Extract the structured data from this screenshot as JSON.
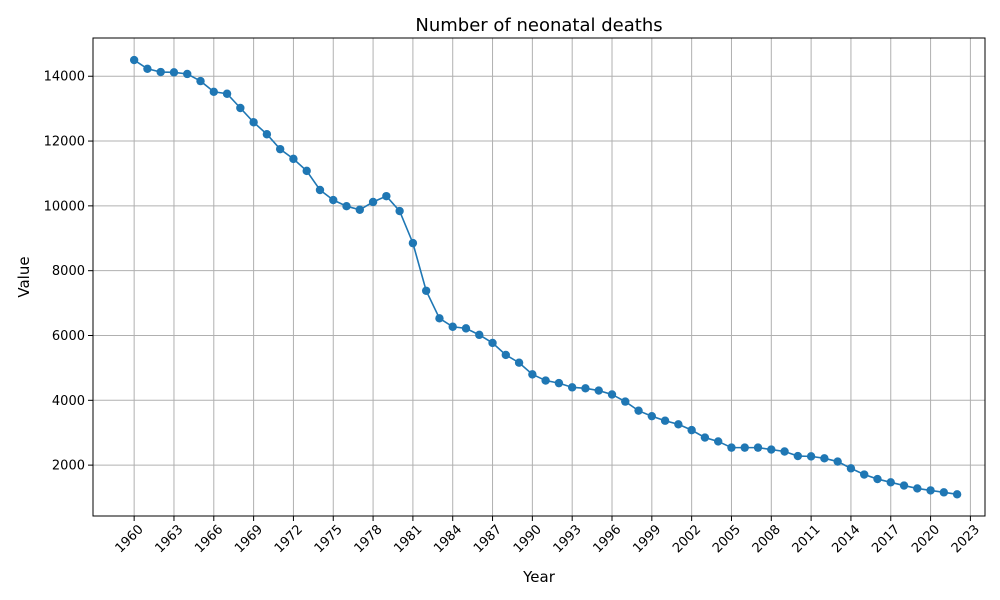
{
  "chart_data": {
    "type": "line",
    "title": "Number of neonatal deaths",
    "xlabel": "Year",
    "ylabel": "Value",
    "xlim": [
      1956.9,
      2024.1
    ],
    "ylim": [
      430,
      15180
    ],
    "x_ticks": [
      1960,
      1963,
      1966,
      1969,
      1972,
      1975,
      1978,
      1981,
      1984,
      1987,
      1990,
      1993,
      1996,
      1999,
      2002,
      2005,
      2008,
      2011,
      2014,
      2017,
      2020,
      2023
    ],
    "y_ticks": [
      2000,
      4000,
      6000,
      8000,
      10000,
      12000,
      14000
    ],
    "grid": true,
    "series_color": "#1f77b4",
    "grid_color": "#b0b0b0",
    "series": [
      {
        "marker": "circle",
        "x": [
          1960,
          1961,
          1962,
          1963,
          1964,
          1965,
          1966,
          1967,
          1968,
          1969,
          1970,
          1971,
          1972,
          1973,
          1974,
          1975,
          1976,
          1977,
          1978,
          1979,
          1980,
          1981,
          1982,
          1983,
          1984,
          1985,
          1986,
          1987,
          1988,
          1989,
          1990,
          1991,
          1992,
          1993,
          1994,
          1995,
          1996,
          1997,
          1998,
          1999,
          2000,
          2001,
          2002,
          2003,
          2004,
          2005,
          2006,
          2007,
          2008,
          2009,
          2010,
          2011,
          2012,
          2013,
          2014,
          2015,
          2016,
          2017,
          2018,
          2019,
          2020,
          2021,
          2022
        ],
        "y": [
          14500,
          14230,
          14130,
          14120,
          14070,
          13850,
          13520,
          13460,
          13020,
          12580,
          12210,
          11750,
          11450,
          11080,
          10490,
          10180,
          9990,
          9880,
          10120,
          10300,
          9840,
          8850,
          7380,
          6530,
          6270,
          6220,
          6020,
          5770,
          5400,
          5160,
          4800,
          4610,
          4530,
          4400,
          4370,
          4300,
          4180,
          3960,
          3680,
          3510,
          3370,
          3260,
          3080,
          2850,
          2730,
          2540,
          2540,
          2540,
          2480,
          2420,
          2280,
          2270,
          2210,
          2110,
          1900,
          1710,
          1570,
          1470,
          1370,
          1280,
          1220,
          1160,
          1100
        ]
      }
    ]
  }
}
